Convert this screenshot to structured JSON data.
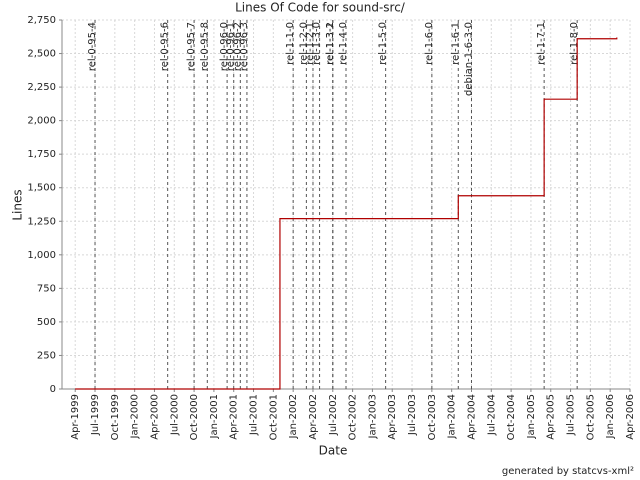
{
  "chart_data": {
    "type": "line",
    "title": "Lines Of Code for sound-src/",
    "xlabel": "Date",
    "ylabel": "Lines",
    "footer": "generated by statcvs-xml²",
    "x": [
      "1999-04",
      "2001-11",
      "2004-02",
      "2005-03",
      "2005-08",
      "2006-02"
    ],
    "values": [
      0,
      1270,
      1440,
      2160,
      2610,
      2620
    ],
    "color": "#b00000",
    "step": "post",
    "markers": [
      {
        "label": "rel-0-95-4",
        "x": "1999-07"
      },
      {
        "label": "rel-0-95-6",
        "x": "2000-06"
      },
      {
        "label": "rel-0-95-7",
        "x": "2000-10"
      },
      {
        "label": "rel-0-95-8",
        "x": "2000-12"
      },
      {
        "label": "rel-0-96-0",
        "x": "2001-03"
      },
      {
        "label": "rel-0-96-1",
        "x": "2001-04"
      },
      {
        "label": "rel-0-96-2",
        "x": "2001-05"
      },
      {
        "label": "rel-0-96-3",
        "x": "2001-06"
      },
      {
        "label": "rel-1-1-0",
        "x": "2002-01"
      },
      {
        "label": "rel-1-2-0",
        "x": "2002-03"
      },
      {
        "label": "rel-1-2-1",
        "x": "2002-04"
      },
      {
        "label": "rel-1-3-0",
        "x": "2002-05"
      },
      {
        "label": "rel-1-3-1",
        "x": "2002-07"
      },
      {
        "label": "rel-1-3-2",
        "x": "2002-07"
      },
      {
        "label": "rel-1-4-0",
        "x": "2002-09"
      },
      {
        "label": "rel-1-5-0",
        "x": "2003-03"
      },
      {
        "label": "rel-1-6-0",
        "x": "2003-10"
      },
      {
        "label": "rel-1-6-1",
        "x": "2004-02"
      },
      {
        "label": "debian-1-6-3-0",
        "x": "2004-04"
      },
      {
        "label": "rel-1-7-1",
        "x": "2005-03"
      },
      {
        "label": "rel-1-8-0",
        "x": "2005-08"
      }
    ],
    "xlim": [
      "1999-02",
      "2006-04"
    ],
    "xticks": [
      {
        "value": "1999-04",
        "label": "Apr-1999"
      },
      {
        "value": "1999-07",
        "label": "Jul-1999"
      },
      {
        "value": "1999-10",
        "label": "Oct-1999"
      },
      {
        "value": "2000-01",
        "label": "Jan-2000"
      },
      {
        "value": "2000-04",
        "label": "Apr-2000"
      },
      {
        "value": "2000-07",
        "label": "Jul-2000"
      },
      {
        "value": "2000-10",
        "label": "Oct-2000"
      },
      {
        "value": "2001-01",
        "label": "Jan-2001"
      },
      {
        "value": "2001-04",
        "label": "Apr-2001"
      },
      {
        "value": "2001-07",
        "label": "Jul-2001"
      },
      {
        "value": "2001-10",
        "label": "Oct-2001"
      },
      {
        "value": "2002-01",
        "label": "Jan-2002"
      },
      {
        "value": "2002-04",
        "label": "Apr-2002"
      },
      {
        "value": "2002-07",
        "label": "Jul-2002"
      },
      {
        "value": "2002-10",
        "label": "Oct-2002"
      },
      {
        "value": "2003-01",
        "label": "Jan-2003"
      },
      {
        "value": "2003-04",
        "label": "Apr-2003"
      },
      {
        "value": "2003-07",
        "label": "Jul-2003"
      },
      {
        "value": "2003-10",
        "label": "Oct-2003"
      },
      {
        "value": "2004-01",
        "label": "Jan-2004"
      },
      {
        "value": "2004-04",
        "label": "Apr-2004"
      },
      {
        "value": "2004-07",
        "label": "Jul-2004"
      },
      {
        "value": "2004-10",
        "label": "Oct-2004"
      },
      {
        "value": "2005-01",
        "label": "Jan-2005"
      },
      {
        "value": "2005-04",
        "label": "Apr-2005"
      },
      {
        "value": "2005-07",
        "label": "Jul-2005"
      },
      {
        "value": "2005-10",
        "label": "Oct-2005"
      },
      {
        "value": "2006-01",
        "label": "Jan-2006"
      },
      {
        "value": "2006-04",
        "label": "Apr-2006"
      }
    ],
    "ylim": [
      0,
      2750
    ],
    "yticks": [
      0,
      250,
      500,
      750,
      {
        "value": 1000,
        "label": "1,000"
      },
      {
        "value": 1250,
        "label": "1,250"
      },
      {
        "value": 1500,
        "label": "1,500"
      },
      {
        "value": 1750,
        "label": "1,750"
      },
      {
        "value": 2000,
        "label": "2,000"
      },
      {
        "value": 2250,
        "label": "2,250"
      },
      {
        "value": 2500,
        "label": "2,500"
      },
      {
        "value": 2750,
        "label": "2,750"
      }
    ],
    "grid": true
  }
}
